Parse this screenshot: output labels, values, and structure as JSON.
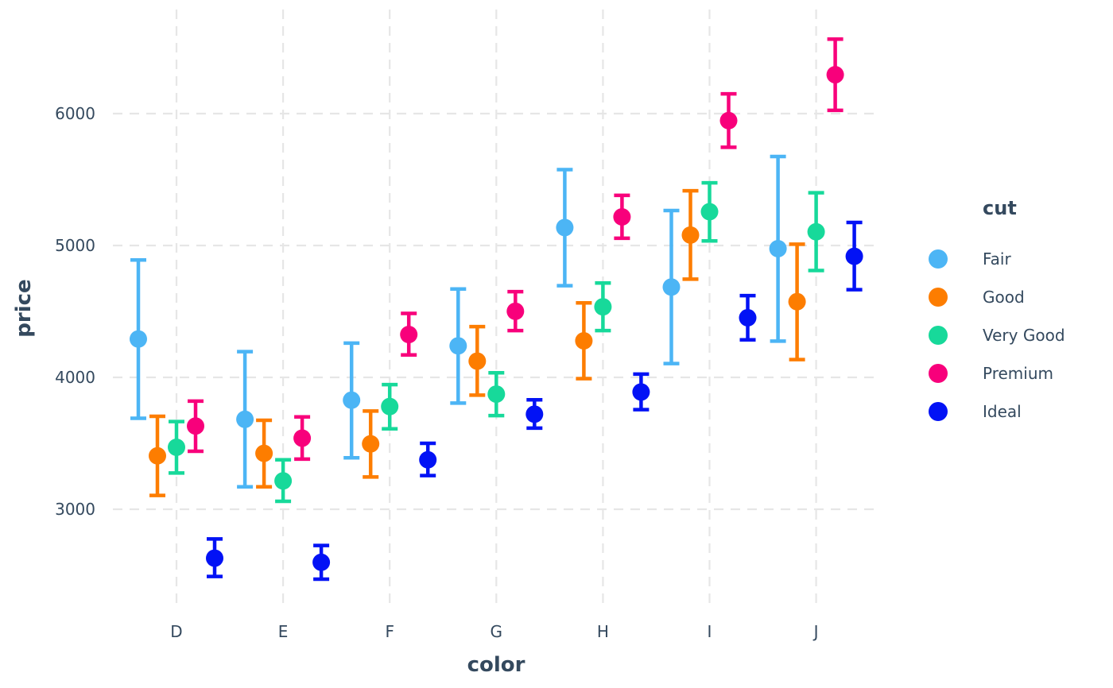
{
  "chart_data": {
    "type": "scatter",
    "subtype": "point-errorbar",
    "title": "",
    "xlabel": "color",
    "ylabel": "price",
    "categories": [
      "D",
      "E",
      "F",
      "G",
      "H",
      "I",
      "J"
    ],
    "ylim": [
      2250,
      6750
    ],
    "yticks": [
      3000,
      4000,
      5000,
      6000
    ],
    "grid": true,
    "legend": {
      "title": "cut",
      "position": "right"
    },
    "series": [
      {
        "name": "Fair",
        "color": "#4cb5f5",
        "values": [
          4291,
          3682,
          3827,
          4239,
          5136,
          4685,
          4976
        ],
        "lower": [
          3690,
          3170,
          3390,
          3805,
          4695,
          4105,
          4275
        ],
        "upper": [
          4890,
          4195,
          4260,
          4670,
          5575,
          5265,
          5675
        ]
      },
      {
        "name": "Good",
        "color": "#fd7d00",
        "values": [
          3405,
          3424,
          3496,
          4123,
          4277,
          5079,
          4574
        ],
        "lower": [
          3105,
          3170,
          3245,
          3865,
          3990,
          4745,
          4135
        ],
        "upper": [
          3705,
          3675,
          3745,
          4385,
          4565,
          5415,
          5010
        ]
      },
      {
        "name": "Very Good",
        "color": "#17d99a",
        "values": [
          3470,
          3215,
          3779,
          3873,
          4535,
          5256,
          5104
        ],
        "lower": [
          3275,
          3060,
          3610,
          3710,
          4355,
          5035,
          4810
        ],
        "upper": [
          3665,
          3375,
          3945,
          4035,
          4715,
          5475,
          5400
        ]
      },
      {
        "name": "Premium",
        "color": "#f8007b",
        "values": [
          3631,
          3539,
          4325,
          4501,
          5217,
          5947,
          6295
        ],
        "lower": [
          3440,
          3380,
          4170,
          4355,
          5055,
          5745,
          6025
        ],
        "upper": [
          3820,
          3700,
          4485,
          4650,
          5380,
          6150,
          6565
        ]
      },
      {
        "name": "Ideal",
        "color": "#0212f5",
        "values": [
          2629,
          2598,
          3375,
          3721,
          3889,
          4452,
          4918
        ],
        "lower": [
          2490,
          2470,
          3255,
          3615,
          3755,
          4285,
          4665
        ],
        "upper": [
          2775,
          2725,
          3500,
          3830,
          4025,
          4620,
          5175
        ]
      }
    ]
  }
}
